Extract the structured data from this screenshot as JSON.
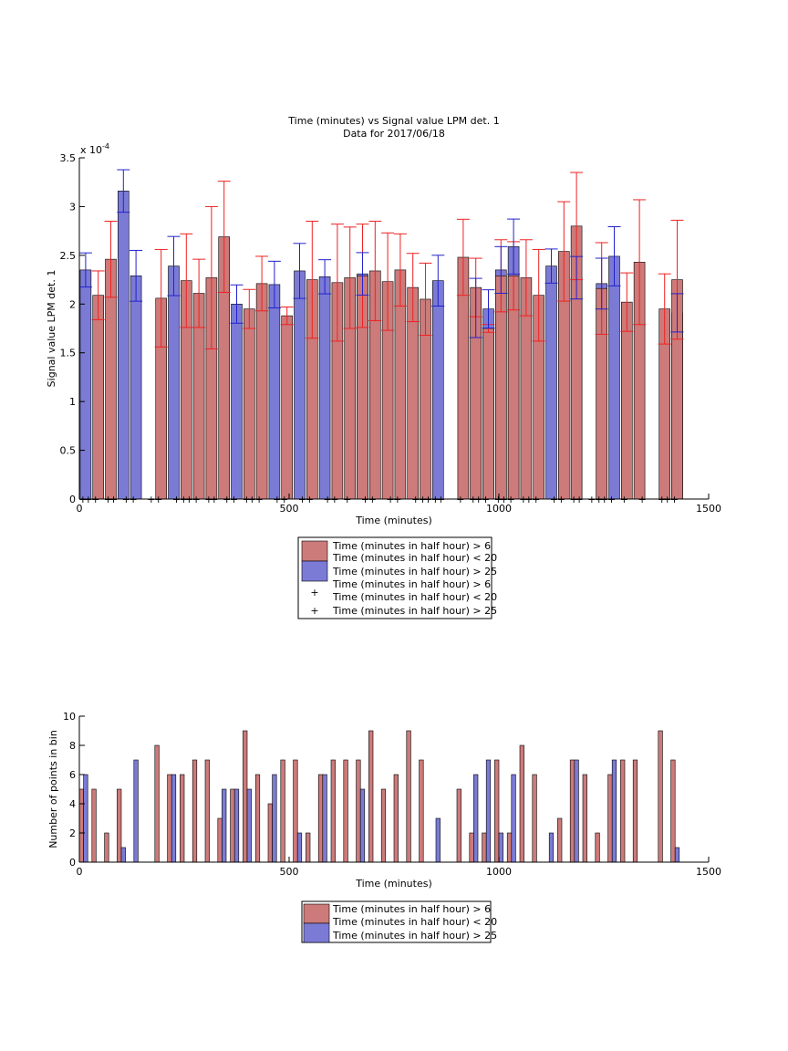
{
  "colors": {
    "red_bar": "#cc7a7a",
    "blue_bar": "#7b7bd6",
    "red_err": "#ee2222",
    "blue_err": "#2222cc"
  },
  "chart_data": [
    {
      "type": "bar",
      "title": "Time (minutes) vs Signal value LPM det. 1",
      "subtitle": "Data for 2017/06/18",
      "xlabel": "Time (minutes)",
      "ylabel": "Signal value LPM det. 1",
      "y_multiplier": "x 10",
      "y_multiplier_exp": "-4",
      "xlim": [
        0,
        1500
      ],
      "ylim": [
        0,
        3.5
      ],
      "xticks": [
        "0",
        "500",
        "1000",
        "1500"
      ],
      "yticks": [
        "0",
        "0.5",
        "1",
        "1.5",
        "2",
        "2.5",
        "3",
        "3.5"
      ],
      "legend": {
        "placement": "below",
        "entries": [
          "Time (minutes in half hour) > 6",
          "Time (minutes in half hour) < 20",
          "Time (minutes in half hour) > 25",
          "Time (minutes in half hour) > 6",
          "Time (minutes in half hour) < 20",
          "Time (minutes in half hour) > 25"
        ]
      },
      "series": [
        {
          "group": "red",
          "x": [
            45,
            75,
            195,
            255,
            285,
            315,
            345,
            405,
            435,
            495,
            555,
            615,
            645,
            675,
            705,
            735,
            765,
            795,
            825,
            915,
            945,
            975,
            1005,
            1035,
            1065,
            1095,
            1155,
            1185,
            1245,
            1305,
            1335,
            1395,
            1425
          ],
          "values": [
            2.09,
            2.46,
            2.06,
            2.24,
            2.11,
            2.27,
            2.69,
            1.95,
            2.21,
            1.88,
            2.25,
            2.22,
            2.27,
            2.29,
            2.34,
            2.23,
            2.35,
            2.17,
            2.05,
            2.48,
            2.17,
            1.75,
            2.29,
            2.29,
            2.27,
            2.09,
            2.54,
            2.8,
            2.16,
            2.02,
            2.43,
            1.95,
            2.25
          ],
          "err": [
            0.25,
            0.39,
            0.5,
            0.48,
            0.35,
            0.73,
            0.57,
            0.2,
            0.28,
            0.09,
            0.6,
            0.6,
            0.52,
            0.53,
            0.51,
            0.5,
            0.37,
            0.35,
            0.37,
            0.39,
            0.3,
            0.04,
            0.37,
            0.35,
            0.39,
            0.47,
            0.51,
            0.55,
            0.47,
            0.3,
            0.64,
            0.36,
            0.61
          ]
        },
        {
          "group": "blue",
          "x": [
            15,
            105,
            135,
            225,
            375,
            465,
            525,
            585,
            675,
            855,
            945,
            975,
            1005,
            1035,
            1125,
            1185,
            1245,
            1275,
            1425
          ],
          "values": [
            2.35,
            3.16,
            2.29,
            2.39,
            2.0,
            2.2,
            2.34,
            2.28,
            2.31,
            2.24,
            1.96,
            1.95,
            2.35,
            2.59,
            2.39,
            2.27,
            2.21,
            2.49,
            1.91
          ]
        }
      ],
      "markers": [
        {
          "group": "red",
          "x": [
            15,
            45,
            75,
            135,
            195,
            255,
            285,
            315,
            375,
            405,
            435,
            495,
            555,
            615,
            645,
            705,
            765,
            825,
            855,
            915,
            945,
            975,
            1005,
            1035,
            1065,
            1095,
            1155,
            1185,
            1245,
            1275,
            1305,
            1395,
            1425
          ]
        },
        {
          "group": "blue",
          "x": [
            15,
            75,
            105,
            165,
            225,
            255,
            315,
            345,
            405,
            465,
            525,
            585,
            675,
            735,
            795,
            825,
            855,
            945,
            1005,
            1065,
            1125,
            1185,
            1215,
            1245,
            1335,
            1395
          ]
        }
      ]
    },
    {
      "type": "bar",
      "xlabel": "Time (minutes)",
      "ylabel": "Number of points in bin",
      "xlim": [
        0,
        1500
      ],
      "ylim": [
        0,
        10
      ],
      "xticks": [
        "0",
        "500",
        "1000",
        "1500"
      ],
      "yticks": [
        "0",
        "2",
        "4",
        "6",
        "8",
        "10"
      ],
      "legend": {
        "placement": "below",
        "entries": [
          "Time (minutes in half hour) > 6",
          "Time (minutes in half hour) < 20",
          "Time (minutes in half hour) > 25"
        ]
      },
      "series": [
        {
          "group": "red",
          "x": [
            5,
            35,
            65,
            95,
            185,
            215,
            245,
            275,
            305,
            335,
            365,
            395,
            425,
            455,
            485,
            515,
            545,
            575,
            605,
            635,
            665,
            695,
            725,
            755,
            785,
            815,
            905,
            935,
            965,
            995,
            1025,
            1055,
            1085,
            1145,
            1175,
            1205,
            1235,
            1265,
            1295,
            1325,
            1385,
            1415
          ],
          "values": [
            5,
            5,
            2,
            5,
            8,
            6,
            6,
            7,
            7,
            3,
            5,
            9,
            6,
            4,
            7,
            7,
            2,
            6,
            7,
            7,
            7,
            9,
            5,
            6,
            9,
            7,
            5,
            2,
            2,
            7,
            2,
            8,
            6,
            3,
            7,
            6,
            2,
            6,
            7,
            7,
            9,
            7
          ],
          "positions_src": "red"
        },
        {
          "group": "blue",
          "x": [
            15,
            105,
            135,
            225,
            345,
            375,
            405,
            465,
            525,
            585,
            675,
            855,
            945,
            975,
            1005,
            1035,
            1125,
            1185,
            1275,
            1425
          ],
          "values": [
            6,
            1,
            7,
            6,
            5,
            5,
            5,
            6,
            2,
            6,
            5,
            3,
            6,
            7,
            2,
            6,
            2,
            7,
            7,
            1
          ]
        }
      ]
    }
  ]
}
